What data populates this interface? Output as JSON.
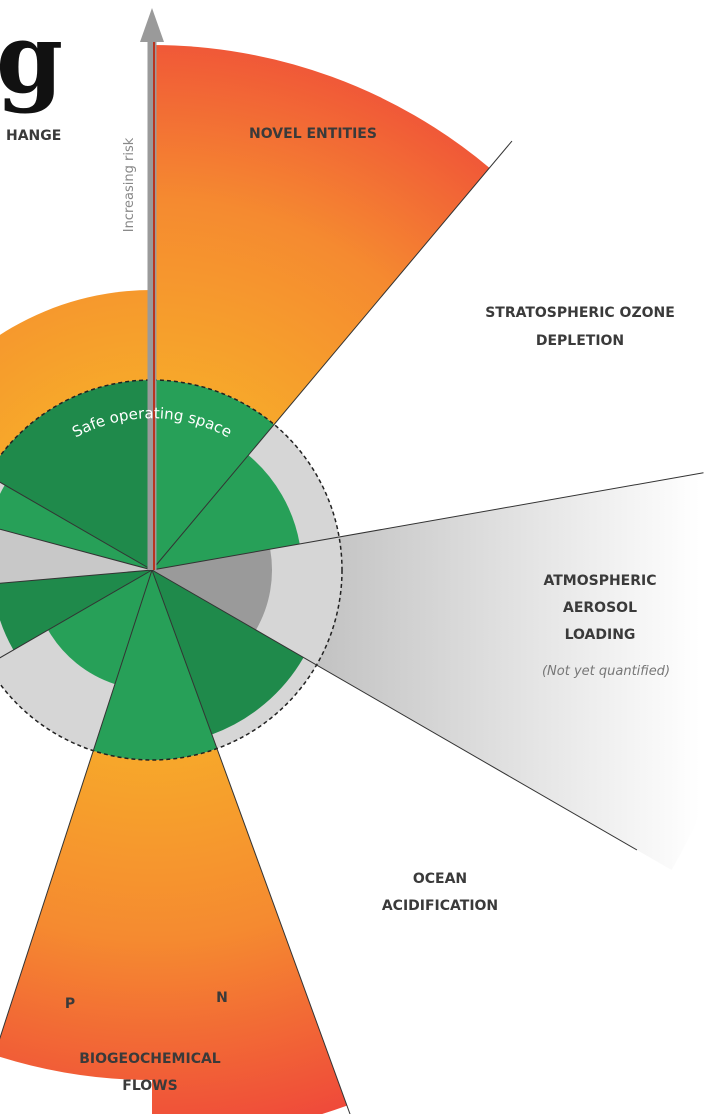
{
  "header": {
    "title": "g"
  },
  "axis": {
    "label": "Increasing risk"
  },
  "safe_space": "Safe operating space",
  "labels": {
    "climate": "HANGE",
    "novel": "NOVEL ENTITIES",
    "ozone": [
      "STRATOSPHERIC OZONE",
      "DEPLETION"
    ],
    "aerosol": [
      "ATMOSPHERIC",
      "AEROSOL",
      "LOADING"
    ],
    "aerosol_note": "(Not yet quantified)",
    "ocean": [
      "OCEAN",
      "ACIDIFICATION"
    ],
    "bio": [
      "BIOGEOCHEMICAL",
      "FLOWS"
    ],
    "p": "P",
    "n": "N"
  }
}
